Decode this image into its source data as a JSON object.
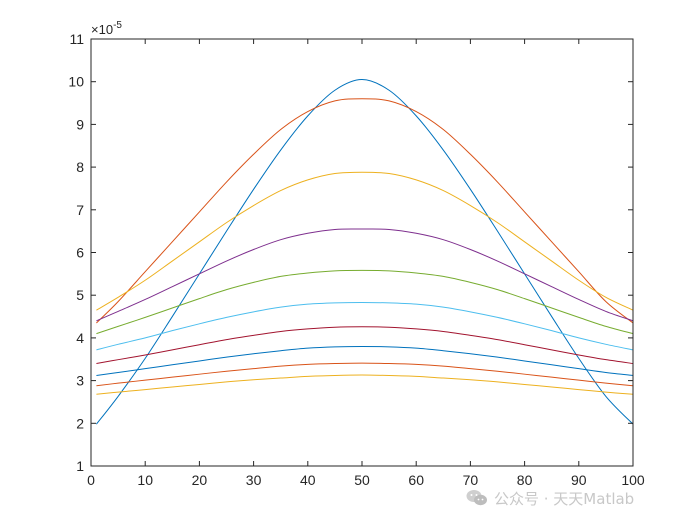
{
  "chart_data": {
    "type": "line",
    "title": "",
    "xlabel": "",
    "ylabel": "",
    "xlim": [
      0,
      100
    ],
    "ylim": [
      1,
      11
    ],
    "x_ticks": [
      "0",
      "10",
      "20",
      "30",
      "40",
      "50",
      "60",
      "70",
      "80",
      "90",
      "100"
    ],
    "y_ticks": [
      "1",
      "2",
      "3",
      "4",
      "5",
      "6",
      "7",
      "8",
      "9",
      "10",
      "11"
    ],
    "y_exponent_prefix": "×10",
    "y_exponent_power": "-5",
    "grid": false,
    "x_sample": [
      1,
      5,
      10,
      15,
      20,
      25,
      30,
      35,
      40,
      45,
      50,
      55,
      60,
      65,
      70,
      75,
      80,
      85,
      90,
      95,
      100
    ],
    "series": [
      {
        "color": "#0072BD",
        "values": [
          1.98,
          2.63,
          3.52,
          4.5,
          5.5,
          6.5,
          7.48,
          8.4,
          9.2,
          9.8,
          10.05,
          9.8,
          9.2,
          8.4,
          7.48,
          6.5,
          5.5,
          4.5,
          3.52,
          2.63,
          1.98
        ]
      },
      {
        "color": "#D95319",
        "values": [
          4.35,
          4.85,
          5.55,
          6.25,
          6.95,
          7.65,
          8.3,
          8.88,
          9.3,
          9.55,
          9.6,
          9.55,
          9.3,
          8.88,
          8.3,
          7.65,
          6.95,
          6.25,
          5.55,
          4.85,
          4.35
        ]
      },
      {
        "color": "#EDB120",
        "values": [
          4.65,
          4.95,
          5.35,
          5.8,
          6.25,
          6.7,
          7.1,
          7.45,
          7.7,
          7.85,
          7.88,
          7.85,
          7.7,
          7.45,
          7.1,
          6.7,
          6.25,
          5.8,
          5.35,
          4.95,
          4.65
        ]
      },
      {
        "color": "#7E2F8E",
        "values": [
          4.4,
          4.62,
          4.9,
          5.2,
          5.5,
          5.8,
          6.07,
          6.3,
          6.45,
          6.54,
          6.55,
          6.54,
          6.45,
          6.3,
          6.07,
          5.8,
          5.5,
          5.2,
          4.9,
          4.62,
          4.4
        ]
      },
      {
        "color": "#77AC30",
        "values": [
          4.1,
          4.27,
          4.48,
          4.7,
          4.92,
          5.13,
          5.3,
          5.44,
          5.52,
          5.57,
          5.58,
          5.57,
          5.52,
          5.44,
          5.3,
          5.13,
          4.92,
          4.7,
          4.48,
          4.27,
          4.1
        ]
      },
      {
        "color": "#4DBEEE",
        "values": [
          3.72,
          3.85,
          4.0,
          4.17,
          4.33,
          4.48,
          4.61,
          4.72,
          4.79,
          4.82,
          4.83,
          4.82,
          4.79,
          4.72,
          4.61,
          4.48,
          4.33,
          4.17,
          4.0,
          3.85,
          3.72
        ]
      },
      {
        "color": "#A2142F",
        "values": [
          3.4,
          3.49,
          3.6,
          3.72,
          3.84,
          3.96,
          4.06,
          4.15,
          4.21,
          4.25,
          4.26,
          4.25,
          4.21,
          4.15,
          4.06,
          3.96,
          3.84,
          3.72,
          3.6,
          3.49,
          3.4
        ]
      },
      {
        "color": "#0072BD",
        "values": [
          3.12,
          3.19,
          3.28,
          3.37,
          3.46,
          3.55,
          3.63,
          3.7,
          3.76,
          3.79,
          3.8,
          3.79,
          3.76,
          3.7,
          3.63,
          3.55,
          3.46,
          3.37,
          3.28,
          3.19,
          3.12
        ]
      },
      {
        "color": "#D95319",
        "values": [
          2.88,
          2.94,
          3.01,
          3.08,
          3.15,
          3.22,
          3.28,
          3.34,
          3.38,
          3.4,
          3.41,
          3.4,
          3.38,
          3.34,
          3.28,
          3.22,
          3.15,
          3.08,
          3.01,
          2.94,
          2.88
        ]
      },
      {
        "color": "#EDB120",
        "values": [
          2.68,
          2.73,
          2.79,
          2.85,
          2.91,
          2.97,
          3.02,
          3.06,
          3.1,
          3.12,
          3.13,
          3.12,
          3.1,
          3.06,
          3.02,
          2.97,
          2.91,
          2.85,
          2.79,
          2.73,
          2.68
        ]
      }
    ]
  },
  "watermark": {
    "text": "公众号 · 天天Matlab",
    "icon": "wechat-icon",
    "color": "#c8c8c8"
  }
}
